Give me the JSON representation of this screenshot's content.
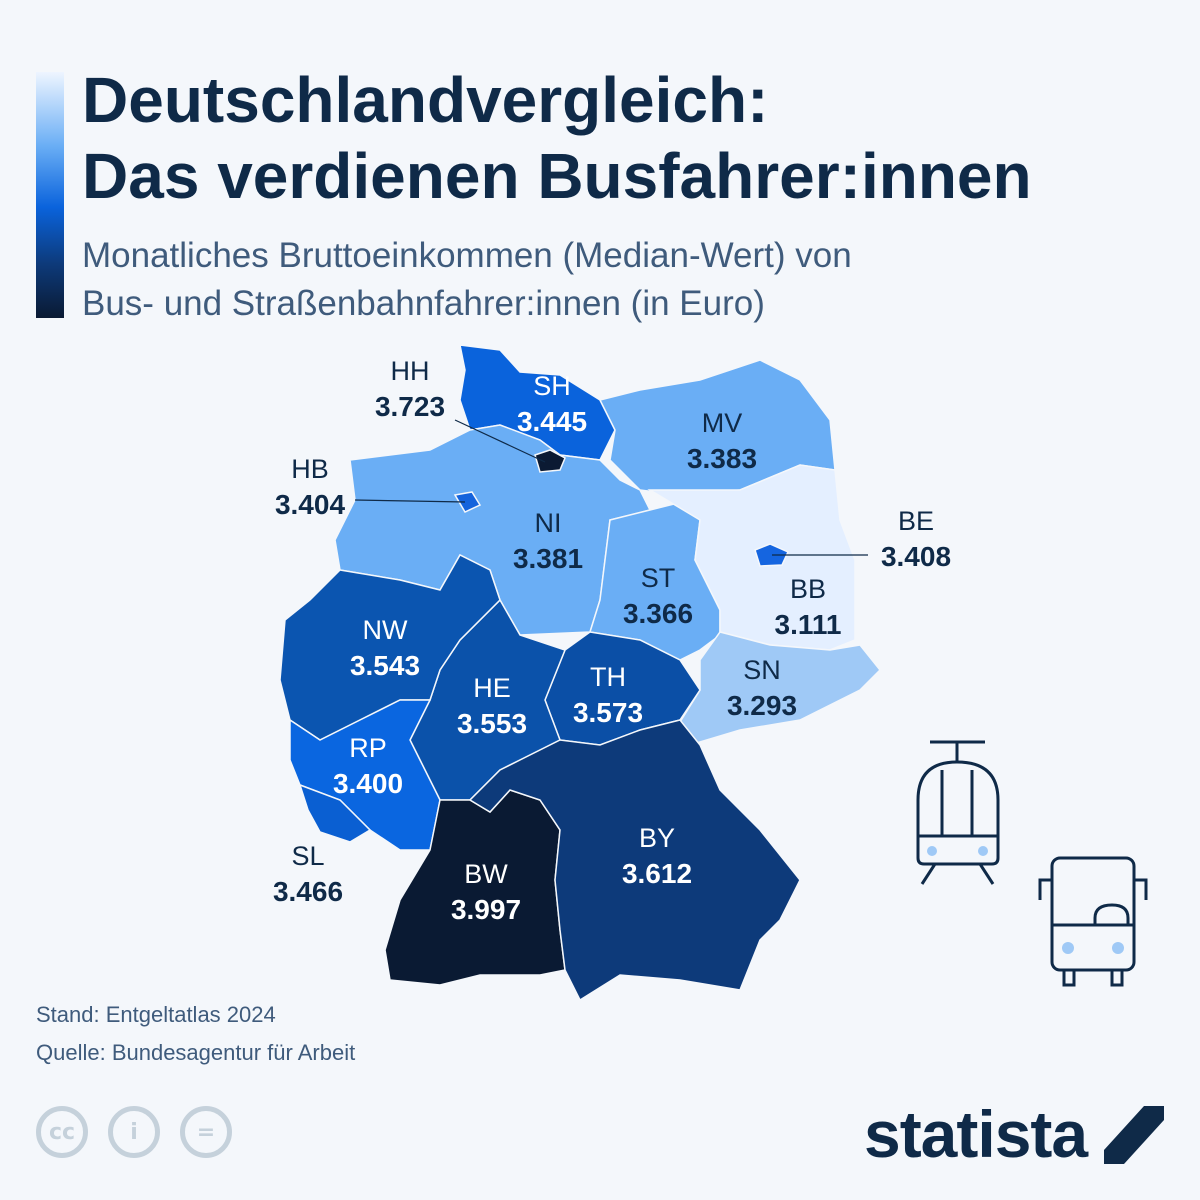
{
  "header": {
    "title_line1": "Deutschlandvergleich:",
    "title_line2": "Das verdienen Busfahrer:innen",
    "subtitle_line1": "Monatliches Bruttoeinkommen (Median-Wert) von",
    "subtitle_line2": "Bus- und Straßenbahnfahrer:innen (in Euro)"
  },
  "map": {
    "unit": "Euro",
    "regions": [
      {
        "code": "SH",
        "value": "3.445",
        "color": "#0a63dc"
      },
      {
        "code": "HH",
        "value": "3.723",
        "color": "#0b1a33"
      },
      {
        "code": "MV",
        "value": "3.383",
        "color": "#6aaef5"
      },
      {
        "code": "HB",
        "value": "3.404",
        "color": "#1463dc"
      },
      {
        "code": "NI",
        "value": "3.381",
        "color": "#6aaef5"
      },
      {
        "code": "BE",
        "value": "3.408",
        "color": "#1565e0"
      },
      {
        "code": "ST",
        "value": "3.366",
        "color": "#6aaef5"
      },
      {
        "code": "BB",
        "value": "3.111",
        "color": "#e4efff"
      },
      {
        "code": "NW",
        "value": "3.543",
        "color": "#0b55b0"
      },
      {
        "code": "HE",
        "value": "3.553",
        "color": "#0b52aa"
      },
      {
        "code": "TH",
        "value": "3.573",
        "color": "#0b4fa6"
      },
      {
        "code": "SN",
        "value": "3.293",
        "color": "#9fc9f6"
      },
      {
        "code": "RP",
        "value": "3.400",
        "color": "#0a66e0"
      },
      {
        "code": "SL",
        "value": "3.466",
        "color": "#0a5fd2"
      },
      {
        "code": "BW",
        "value": "3.997",
        "color": "#0a1a33"
      },
      {
        "code": "BY",
        "value": "3.612",
        "color": "#0d3a7a"
      }
    ]
  },
  "icons": [
    "tram-icon",
    "bus-icon"
  ],
  "footer": {
    "stand": "Stand: Entgeltatlas 2024",
    "quelle": "Quelle: Bundesagentur für Arbeit",
    "license_icons": [
      "cc-icon",
      "by-icon",
      "nd-icon"
    ],
    "brand": "statista"
  }
}
